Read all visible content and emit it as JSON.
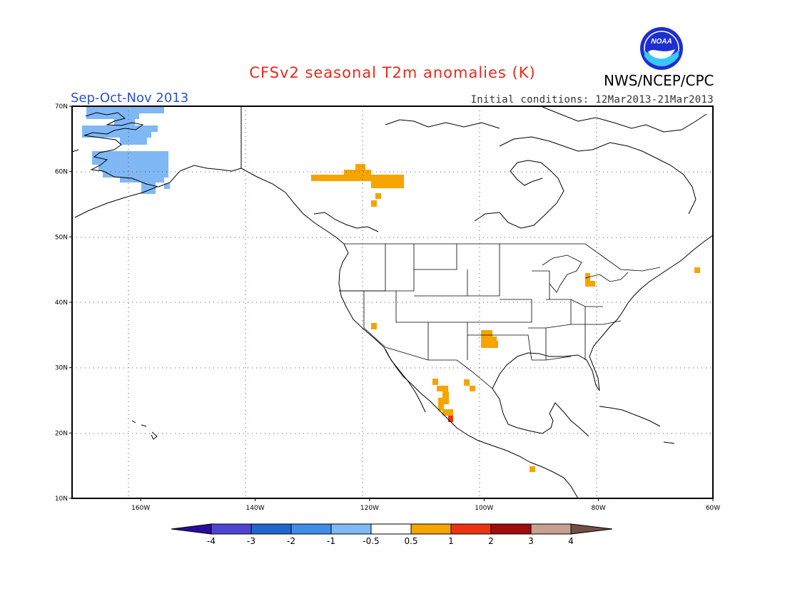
{
  "header": {
    "title": "CFSv2 seasonal T2m anomalies (K)",
    "agency": "NWS/NCEP/CPC",
    "logo_text": "NOAA",
    "season": "Sep-Oct-Nov 2013",
    "initial_conditions": "Initial conditions: 12Mar2013-21Mar2013"
  },
  "map": {
    "lon_range": [
      -172,
      -60
    ],
    "lat_range": [
      10,
      70
    ],
    "lat_labels": [
      "10N",
      "20N",
      "30N",
      "40N",
      "50N",
      "60N",
      "70N"
    ],
    "lon_labels": [
      "160W",
      "140W",
      "120W",
      "100W",
      "80W",
      "60W"
    ],
    "grid": "dotted",
    "colors": {
      "light_blue": "#7fb8f5",
      "orange": "#f6a400",
      "red": "#ee3312"
    }
  },
  "colorbar": {
    "labels": [
      "-4",
      "-3",
      "-2",
      "-1",
      "-0.5",
      "0.5",
      "1",
      "2",
      "3",
      "4"
    ],
    "colors": [
      "#2a0aa0",
      "#4e45d3",
      "#1f67cc",
      "#3f8de6",
      "#80baf5",
      "#ffffff",
      "#f6a400",
      "#ee3312",
      "#a10c0c",
      "#c8a08f",
      "#744e42"
    ]
  }
}
